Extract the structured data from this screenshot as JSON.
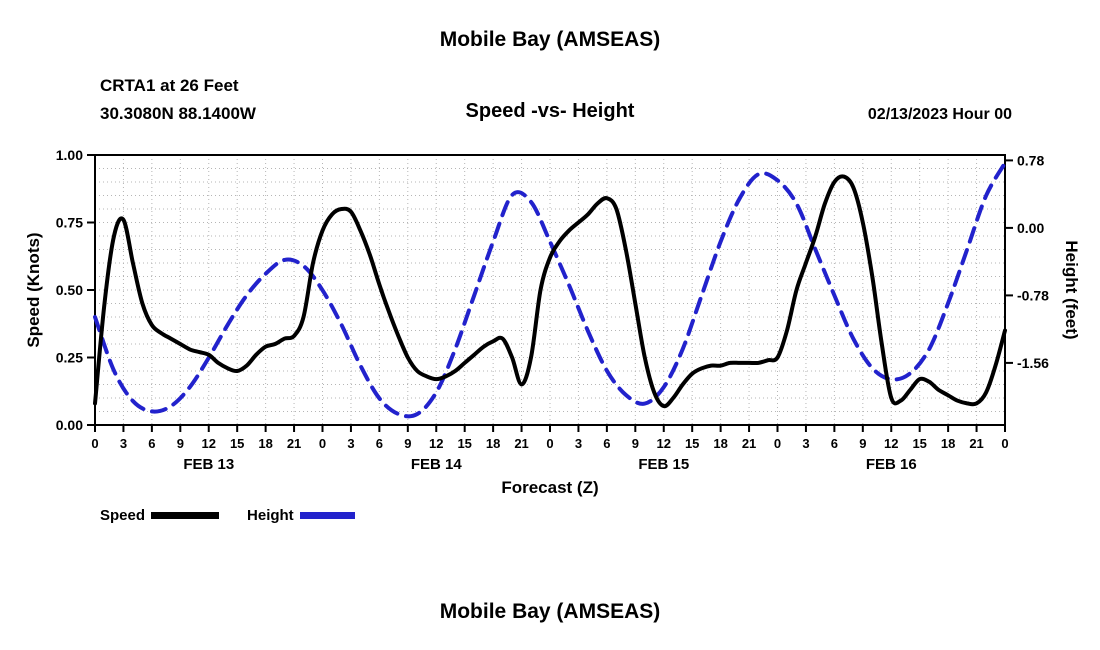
{
  "header": {
    "title": "Mobile Bay (AMSEAS)",
    "station": "CRTA1 at 26 Feet",
    "coordinates": "30.3080N  88.1400W",
    "subtitle": "Speed -vs- Height",
    "datetime": "02/13/2023 Hour 00"
  },
  "footer": {
    "title": "Mobile Bay (AMSEAS)"
  },
  "legend": {
    "speed_label": "Speed",
    "height_label": "Height"
  },
  "colors": {
    "speed": "#000000",
    "height": "#2222cc",
    "grid": "#b5b5b5",
    "frame": "#000000",
    "text": "#000000"
  },
  "chart_data": {
    "type": "line",
    "title": "Speed -vs- Height",
    "xlabel": "Forecast (Z)",
    "ylabel_left": "Speed (Knots)",
    "ylabel_right": "Height (feet)",
    "x_range": [
      0,
      96
    ],
    "x_tick_step": 3,
    "x_tick_label_mod": 24,
    "day_labels": [
      "FEB 13",
      "FEB 14",
      "FEB 15",
      "FEB 16"
    ],
    "grid": {
      "vertical_every_hours": 3,
      "horizontal_every_left_units": 0.05
    },
    "y_left": {
      "range": [
        0,
        1
      ],
      "ticks": [
        0.0,
        0.25,
        0.5,
        0.75,
        1.0
      ],
      "tick_labels": [
        "0.00",
        "0.25",
        "0.50",
        "0.75",
        "1.00"
      ]
    },
    "y_right": {
      "ticks": [
        0.78,
        0.0,
        -0.78,
        -1.56
      ],
      "tick_labels": [
        "0.78",
        "0.00",
        "-0.78",
        "-1.56"
      ],
      "zero_fraction": 0.73,
      "feet_per_fraction": 3.12
    },
    "series": [
      {
        "name": "Speed",
        "axis": "left",
        "unit": "knots",
        "style": "solid",
        "color_key": "speed",
        "x_start": 0,
        "x_step": 1,
        "values": [
          0.08,
          0.45,
          0.7,
          0.76,
          0.6,
          0.45,
          0.37,
          0.34,
          0.32,
          0.3,
          0.28,
          0.27,
          0.26,
          0.23,
          0.21,
          0.2,
          0.22,
          0.26,
          0.29,
          0.3,
          0.32,
          0.33,
          0.4,
          0.6,
          0.72,
          0.78,
          0.8,
          0.79,
          0.72,
          0.63,
          0.52,
          0.42,
          0.33,
          0.25,
          0.2,
          0.18,
          0.17,
          0.18,
          0.2,
          0.23,
          0.26,
          0.29,
          0.31,
          0.32,
          0.25,
          0.15,
          0.25,
          0.5,
          0.62,
          0.68,
          0.72,
          0.75,
          0.78,
          0.82,
          0.84,
          0.8,
          0.65,
          0.45,
          0.25,
          0.12,
          0.07,
          0.1,
          0.15,
          0.19,
          0.21,
          0.22,
          0.22,
          0.23,
          0.23,
          0.23,
          0.23,
          0.24,
          0.25,
          0.35,
          0.5,
          0.6,
          0.7,
          0.82,
          0.9,
          0.92,
          0.88,
          0.75,
          0.55,
          0.3,
          0.1,
          0.09,
          0.13,
          0.17,
          0.16,
          0.13,
          0.11,
          0.09,
          0.08,
          0.08,
          0.12,
          0.22,
          0.35
        ]
      },
      {
        "name": "Height",
        "axis": "right",
        "unit": "feet",
        "style": "dashed",
        "color_key": "height",
        "x_start": 0,
        "x_step": 2,
        "values": [
          -1.03,
          -1.65,
          -2.0,
          -2.12,
          -2.06,
          -1.84,
          -1.5,
          -1.12,
          -0.78,
          -0.53,
          -0.37,
          -0.44,
          -0.72,
          -1.12,
          -1.59,
          -1.97,
          -2.15,
          -2.15,
          -1.9,
          -1.4,
          -0.78,
          -0.16,
          0.38,
          0.3,
          -0.16,
          -0.66,
          -1.19,
          -1.65,
          -1.93,
          -2.03,
          -1.84,
          -1.4,
          -0.78,
          -0.16,
          0.34,
          0.62,
          0.55,
          0.28,
          -0.25,
          -0.78,
          -1.28,
          -1.62,
          -1.75,
          -1.68,
          -1.4,
          -0.87,
          -0.25,
          0.37,
          0.75
        ]
      }
    ]
  }
}
